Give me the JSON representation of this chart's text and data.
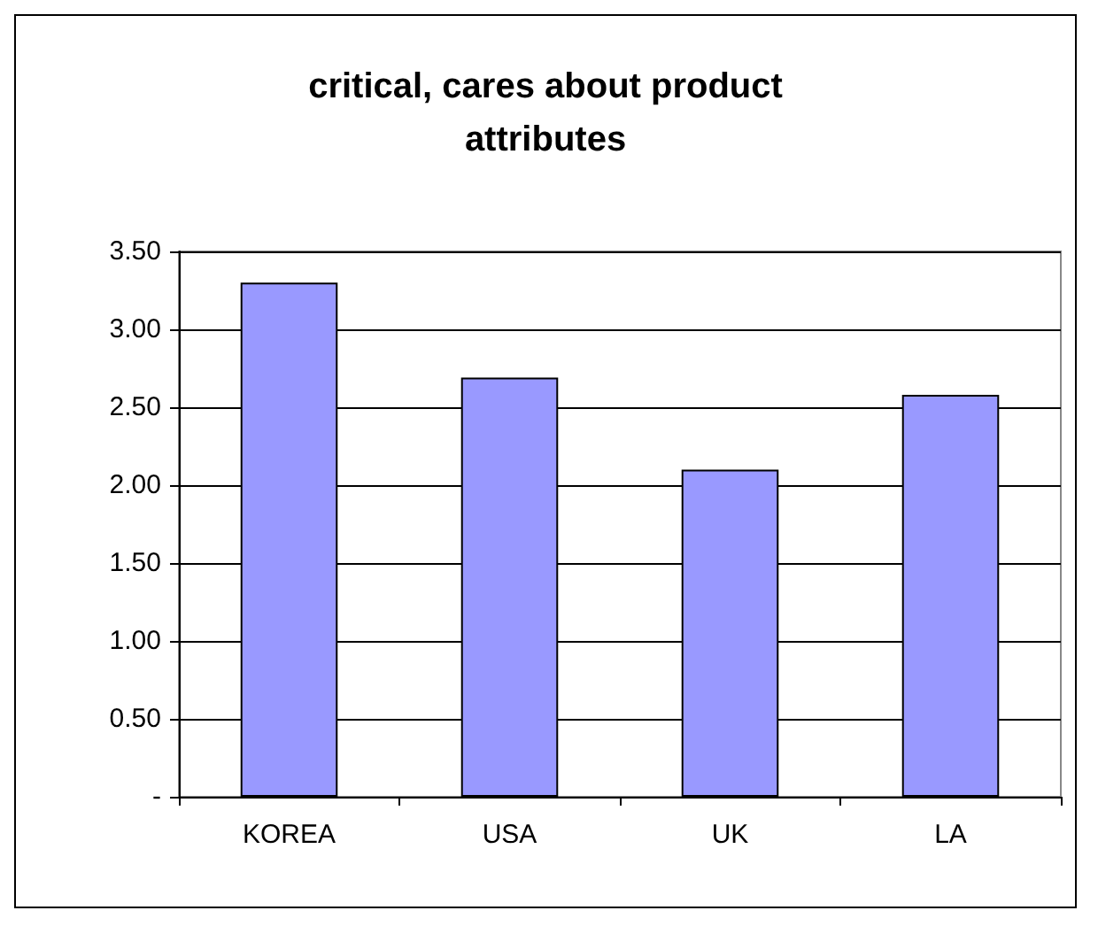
{
  "chart_data": {
    "type": "bar",
    "title": "critical, cares about product\nattributes",
    "categories": [
      "KOREA",
      "USA",
      "UK",
      "LA"
    ],
    "values": [
      3.3,
      2.69,
      2.1,
      2.58
    ],
    "color": "#9999ff",
    "ylim": [
      0,
      3.5
    ],
    "yticks": [
      {
        "value": 0,
        "label": "-"
      },
      {
        "value": 0.5,
        "label": "0.50"
      },
      {
        "value": 1,
        "label": "1.00"
      },
      {
        "value": 1.5,
        "label": "1.50"
      },
      {
        "value": 2,
        "label": "2.00"
      },
      {
        "value": 2.5,
        "label": "2.50"
      },
      {
        "value": 3,
        "label": "3.00"
      },
      {
        "value": 3.5,
        "label": "3.50"
      }
    ],
    "grid": true
  }
}
